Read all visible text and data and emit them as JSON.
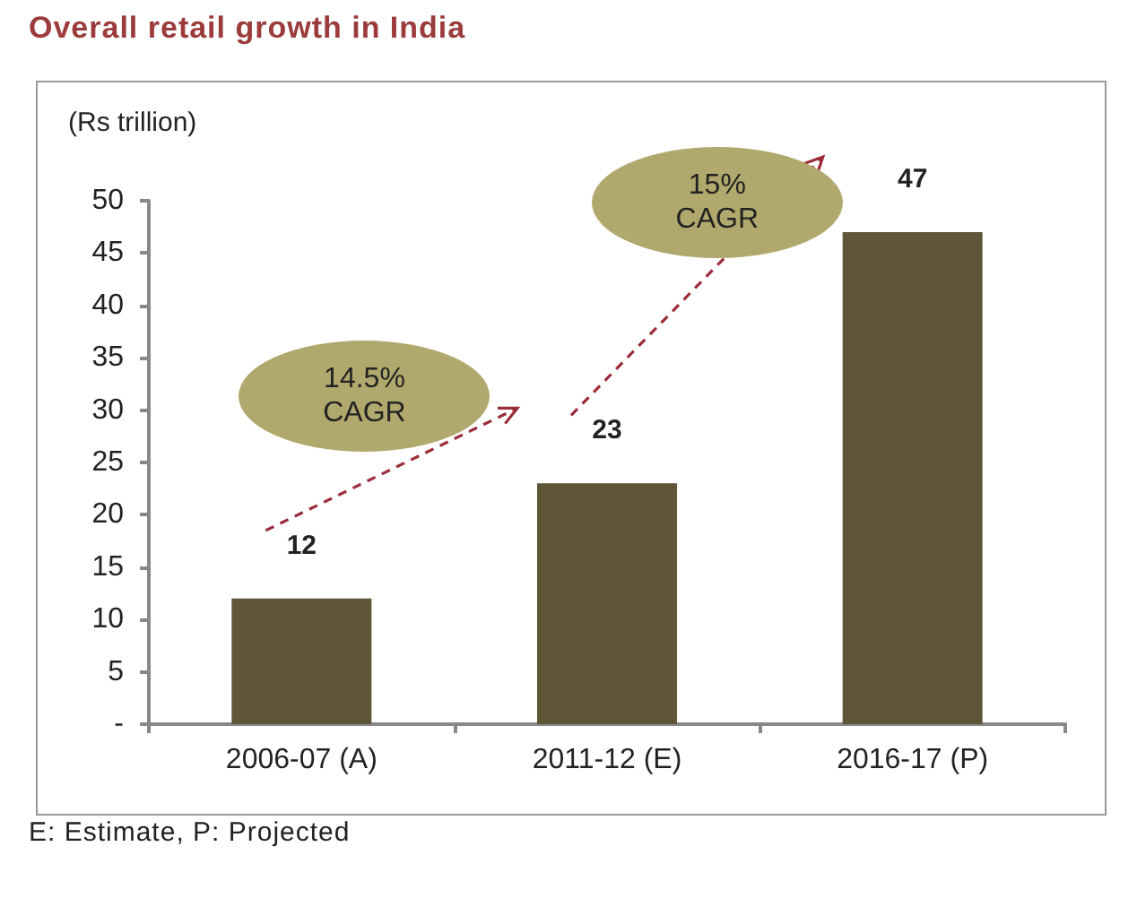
{
  "chart_data": {
    "type": "bar",
    "title": "Overall retail growth in India",
    "ylabel": "(Rs trillion)",
    "categories": [
      "2006-07 (A)",
      "2011-12 (E)",
      "2016-17 (P)"
    ],
    "values": [
      12,
      23,
      47
    ],
    "color": "#5e5636",
    "ylim": [
      0,
      50
    ],
    "yticks": [
      {
        "value": 0,
        "label": "-"
      },
      5,
      10,
      15,
      20,
      25,
      30,
      35,
      40,
      45,
      50
    ],
    "data_labels": true,
    "annotations": [
      "14.5% CAGR",
      "15% CAGR",
      "E: Estimate, P: Projected"
    ]
  }
}
